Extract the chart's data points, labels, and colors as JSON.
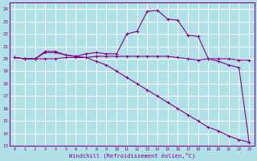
{
  "bg_color": "#b0e0e8",
  "grid_color": "#ffffff",
  "line_color": "#880088",
  "marker_color": "#880088",
  "xlabel": "Windchill (Refroidissement éolien,°C)",
  "xlim": [
    -0.5,
    23.5
  ],
  "ylim": [
    13,
    24.5
  ],
  "yticks": [
    13,
    14,
    15,
    16,
    17,
    18,
    19,
    20,
    21,
    22,
    23,
    24
  ],
  "xticks": [
    0,
    1,
    2,
    3,
    4,
    5,
    6,
    7,
    8,
    9,
    10,
    11,
    12,
    13,
    14,
    15,
    16,
    17,
    18,
    19,
    20,
    21,
    22,
    23
  ],
  "hours": [
    0,
    1,
    2,
    3,
    4,
    5,
    6,
    7,
    8,
    9,
    10,
    11,
    12,
    13,
    14,
    15,
    16,
    17,
    18,
    19,
    20,
    21,
    22,
    23
  ],
  "flat_line": [
    20.1,
    20.0,
    20.0,
    20.0,
    20.0,
    20.1,
    20.1,
    20.1,
    20.2,
    20.2,
    20.2,
    20.2,
    20.2,
    20.2,
    20.2,
    20.2,
    20.1,
    20.0,
    19.9,
    20.0,
    20.0,
    20.0,
    19.9,
    19.9
  ],
  "windchill_line": [
    20.1,
    20.0,
    20.0,
    20.6,
    20.6,
    20.3,
    20.2,
    20.4,
    20.5,
    20.4,
    20.4,
    22.0,
    22.2,
    23.8,
    23.9,
    23.2,
    23.1,
    21.9,
    21.8,
    20.0,
    19.8,
    19.5,
    19.3,
    13.3
  ],
  "diagonal_line": [
    20.1,
    20.0,
    20.0,
    20.5,
    20.5,
    20.3,
    20.2,
    20.1,
    19.8,
    19.5,
    19.0,
    18.5,
    18.0,
    17.5,
    17.0,
    16.5,
    16.0,
    15.5,
    15.0,
    14.5,
    14.2,
    13.8,
    13.5,
    13.3
  ]
}
